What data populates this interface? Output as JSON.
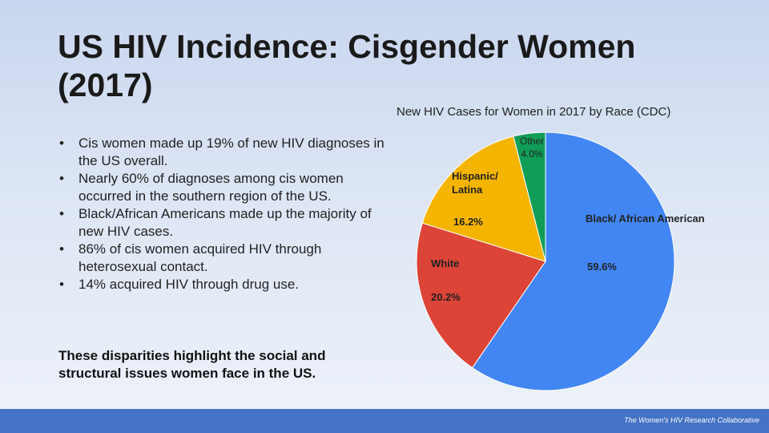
{
  "slide": {
    "title": "US HIV Incidence: Cisgender Women (2017)",
    "bullets": [
      "Cis women made up 19% of new HIV diagnoses in the US overall.",
      "Nearly 60% of diagnoses among cis women occurred in the southern region of the US.",
      "Black/African Americans made up the majority of new HIV cases.",
      "86% of cis women acquired HIV through heterosexual contact.",
      "14% acquired HIV through drug use."
    ],
    "footer_note": "These disparities highlight the social and structural issues women face in the US.",
    "credit": "The Women's HIV Research Collaborative"
  },
  "chart_data": {
    "type": "pie",
    "title": "New HIV Cases for Women in 2017 by Race (CDC)",
    "series": [
      {
        "name": "Black/ African American",
        "value": 59.6,
        "label": "59.6%",
        "color": "#4286f4"
      },
      {
        "name": "White",
        "value": 20.2,
        "label": "20.2%",
        "color": "#dc4437"
      },
      {
        "name": "Hispanic/ Latina",
        "value": 16.2,
        "label": "16.2%",
        "color": "#f4b400"
      },
      {
        "name": "Other",
        "value": 4.0,
        "label": "4.0%",
        "color": "#109d58"
      }
    ],
    "start": "top, clockwise"
  }
}
